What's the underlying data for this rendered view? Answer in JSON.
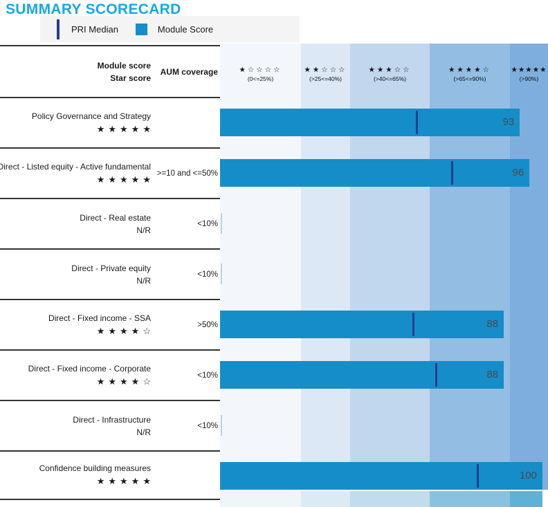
{
  "title": "SUMMARY SCORECARD",
  "legend": {
    "median_label": "PRI Median",
    "score_label": "Module Score"
  },
  "header": {
    "col1_line1": "Module score",
    "col1_line2": "Star score",
    "col2": "AUM coverage"
  },
  "bands": [
    {
      "stars": "★☆☆☆☆",
      "range": "(0<=25%)",
      "from": 0,
      "to": 25,
      "bg": "#f3f7fb"
    },
    {
      "stars": "★★☆☆☆",
      "range": "(>25<=40%)",
      "from": 25,
      "to": 40,
      "bg": "#dce8f5"
    },
    {
      "stars": "★★★☆☆",
      "range": "(>40<=65%)",
      "from": 40,
      "to": 65,
      "bg": "#c1d7ee"
    },
    {
      "stars": "★★★★☆",
      "range": "(>65<=90%)",
      "from": 65,
      "to": 90,
      "bg": "#94bde4"
    },
    {
      "stars": "★★★★★",
      "range": "(>90%)",
      "from": 90,
      "to": 100,
      "bg": "#7eaedd"
    }
  ],
  "rows": [
    {
      "label": "Policy Governance and Strategy",
      "stars": "★★★★★",
      "aum": "",
      "score": 93,
      "median": 61
    },
    {
      "label": "Direct - Listed equity - Active fundamental",
      "stars": "★★★★★",
      "aum": ">=10 and <=50%",
      "score": 96,
      "median": 72
    },
    {
      "label": "Direct - Real estate",
      "stars": "N/R",
      "aum": "<10%",
      "score": null,
      "median": null
    },
    {
      "label": "Direct - Private equity",
      "stars": "N/R",
      "aum": "<10%",
      "score": null,
      "median": null
    },
    {
      "label": "Direct - Fixed income - SSA",
      "stars": "★★★★☆",
      "aum": ">50%",
      "score": 88,
      "median": 60
    },
    {
      "label": "Direct - Fixed income - Corporate",
      "stars": "★★★★☆",
      "aum": "<10%",
      "score": 88,
      "median": 67
    },
    {
      "label": "Direct - Infrastructure",
      "stars": "N/R",
      "aum": "<10%",
      "score": null,
      "median": null
    },
    {
      "label": "Confidence building measures",
      "stars": "★★★★★",
      "aum": "",
      "score": 100,
      "median": 80
    }
  ],
  "next_section": {
    "colors": [
      "#eef6fa",
      "#daebf4",
      "#c1dcec",
      "#89c2df",
      "#60b1d5"
    ]
  },
  "colors": {
    "title": "#16a8e0",
    "bar": "#158dc9",
    "median": "#283c90",
    "value_text": "#4a4a4a",
    "nr_line": "#b5d2ee",
    "legend_bg": "#f4f4f4",
    "border": "#333333"
  },
  "chart_data": {
    "type": "bar",
    "orientation": "horizontal",
    "title": "SUMMARY SCORECARD",
    "xlim": [
      0,
      100
    ],
    "grid": false,
    "legend_position": "top",
    "categories": [
      "Policy Governance and Strategy",
      "Direct - Listed equity - Active fundamental",
      "Direct - Real estate",
      "Direct - Private equity",
      "Direct - Fixed income - SSA",
      "Direct - Fixed income - Corporate",
      "Direct - Infrastructure",
      "Confidence building measures"
    ],
    "series": [
      {
        "name": "Module Score",
        "marker": "bar",
        "values": [
          93,
          96,
          null,
          null,
          88,
          88,
          null,
          100
        ]
      },
      {
        "name": "PRI Median",
        "marker": "vertical-line",
        "values": [
          61,
          72,
          null,
          null,
          60,
          67,
          null,
          80
        ]
      }
    ],
    "star_scores": [
      "5/5",
      "5/5",
      "N/R",
      "N/R",
      "4/5",
      "4/5",
      "N/R",
      "5/5"
    ],
    "aum_coverage": [
      "",
      ">=10 and <=50%",
      "<10%",
      "<10%",
      ">50%",
      "<10%",
      "<10%",
      ""
    ],
    "x_bands": [
      {
        "stars": 1,
        "label": "(0<=25%)",
        "range": [
          0,
          25
        ]
      },
      {
        "stars": 2,
        "label": "(>25<=40%)",
        "range": [
          25,
          40
        ]
      },
      {
        "stars": 3,
        "label": "(>40<=65%)",
        "range": [
          40,
          65
        ]
      },
      {
        "stars": 4,
        "label": "(>65<=90%)",
        "range": [
          65,
          90
        ]
      },
      {
        "stars": 5,
        "label": "(>90%)",
        "range": [
          90,
          100
        ]
      }
    ]
  }
}
